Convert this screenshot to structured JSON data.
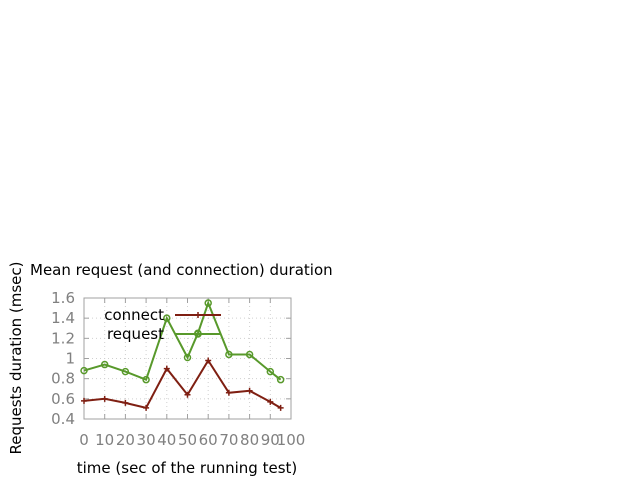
{
  "chart_data": {
    "type": "line",
    "title": "Mean request (and connection) duration",
    "xlabel": "time (sec of the running test)",
    "ylabel": "Requests duration (msec)",
    "xlim": [
      0,
      100
    ],
    "ylim": [
      0.4,
      1.6
    ],
    "xticks": [
      "0",
      "10",
      "20",
      "30",
      "40",
      "50",
      "60",
      "70",
      "80",
      "90",
      "100"
    ],
    "yticks": [
      "0.4",
      "0.6",
      "0.8",
      "1",
      "1.2",
      "1.4",
      "1.6"
    ],
    "grid": true,
    "legend_position": "top-left",
    "series": [
      {
        "name": "connect",
        "color": "#7f1f12",
        "marker": "plus",
        "x": [
          0,
          10,
          20,
          30,
          40,
          50,
          60,
          70,
          80,
          90,
          95
        ],
        "y": [
          0.58,
          0.6,
          0.56,
          0.51,
          0.9,
          0.64,
          0.98,
          0.66,
          0.68,
          0.57,
          0.51
        ]
      },
      {
        "name": "request",
        "color": "#58992b",
        "marker": "circle",
        "x": [
          0,
          10,
          20,
          30,
          40,
          50,
          55,
          60,
          70,
          80,
          90,
          95
        ],
        "y": [
          0.88,
          0.94,
          0.87,
          0.79,
          1.4,
          1.01,
          1.25,
          1.55,
          1.04,
          1.04,
          0.87,
          0.79
        ]
      }
    ]
  }
}
